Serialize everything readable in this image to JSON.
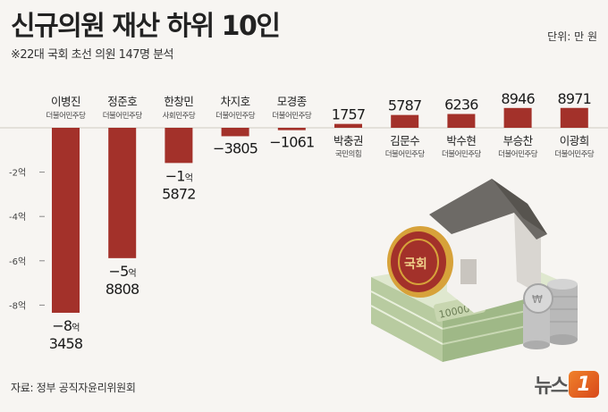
{
  "header": {
    "title": "신규의원 재산 하위 10인",
    "subtitle": "※22대 국회 초선 의원 147명 분석",
    "unit": "단위: 만 원"
  },
  "footer": {
    "source": "자료: 정부 공직자윤리위원회",
    "logo_text": "뉴스",
    "logo_badge": "1"
  },
  "illustration": {
    "seal_text": "국회",
    "money_note": "10000"
  },
  "chart_data": {
    "type": "bar",
    "title": "신규의원 재산 하위 10인",
    "unit": "만 원",
    "ylim": [
      -85000,
      10000
    ],
    "yticks": [
      {
        "value": -20000,
        "label": "-2억"
      },
      {
        "value": -40000,
        "label": "-4억"
      },
      {
        "value": -60000,
        "label": "-6억"
      },
      {
        "value": -80000,
        "label": "-8억"
      }
    ],
    "bar_color": "#a3312a",
    "grid": false,
    "items": [
      {
        "name": "이병진",
        "party": "더불어민주당",
        "value": -83458,
        "label_main": "−8",
        "label_unit": "억",
        "label_rest": "3458"
      },
      {
        "name": "정준호",
        "party": "더불어민주당",
        "value": -58808,
        "label_main": "−5",
        "label_unit": "억",
        "label_rest": "8808"
      },
      {
        "name": "한창민",
        "party": "사회민주당",
        "value": -15872,
        "label_main": "−1",
        "label_unit": "억",
        "label_rest": "5872"
      },
      {
        "name": "차지호",
        "party": "더불어민주당",
        "value": -3805,
        "label_main": "−3805",
        "label_unit": "",
        "label_rest": ""
      },
      {
        "name": "모경종",
        "party": "더불어민주당",
        "value": -1061,
        "label_main": "−1061",
        "label_unit": "",
        "label_rest": ""
      },
      {
        "name": "박충권",
        "party": "국민의힘",
        "value": 1757,
        "label_main": "1757",
        "label_unit": "",
        "label_rest": ""
      },
      {
        "name": "김문수",
        "party": "더불어민주당",
        "value": 5787,
        "label_main": "5787",
        "label_unit": "",
        "label_rest": ""
      },
      {
        "name": "박수현",
        "party": "더불어민주당",
        "value": 6236,
        "label_main": "6236",
        "label_unit": "",
        "label_rest": ""
      },
      {
        "name": "부승찬",
        "party": "더불어민주당",
        "value": 8946,
        "label_main": "8946",
        "label_unit": "",
        "label_rest": ""
      },
      {
        "name": "이광희",
        "party": "더불어민주당",
        "value": 8971,
        "label_main": "8971",
        "label_unit": "",
        "label_rest": ""
      }
    ]
  }
}
